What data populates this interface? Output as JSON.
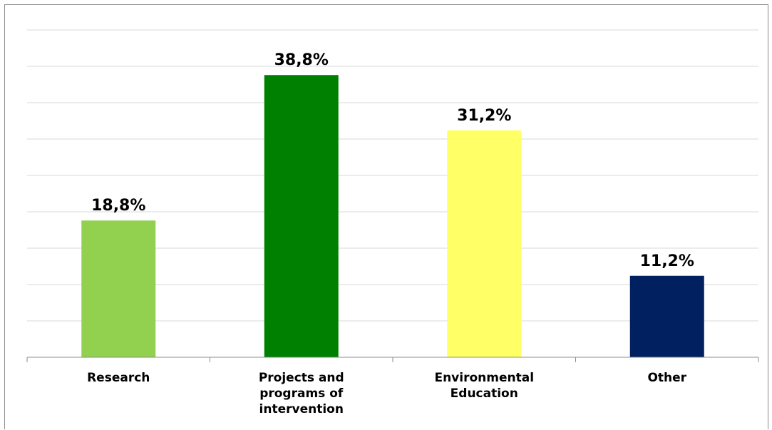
{
  "chart_data": {
    "type": "bar",
    "categories": [
      "Research",
      "Projects and programs of intervention",
      "Environmental Education",
      "Other"
    ],
    "values": [
      18.8,
      38.8,
      31.2,
      11.2
    ],
    "value_labels": [
      "18,8%",
      "38,8%",
      "31,2%",
      "11,2%"
    ],
    "colors": [
      "#92d050",
      "#008000",
      "#ffff66",
      "#002060"
    ],
    "title": "",
    "xlabel": "",
    "ylabel": "",
    "ylim": [
      0,
      45
    ],
    "grid": true,
    "legend": "none"
  }
}
